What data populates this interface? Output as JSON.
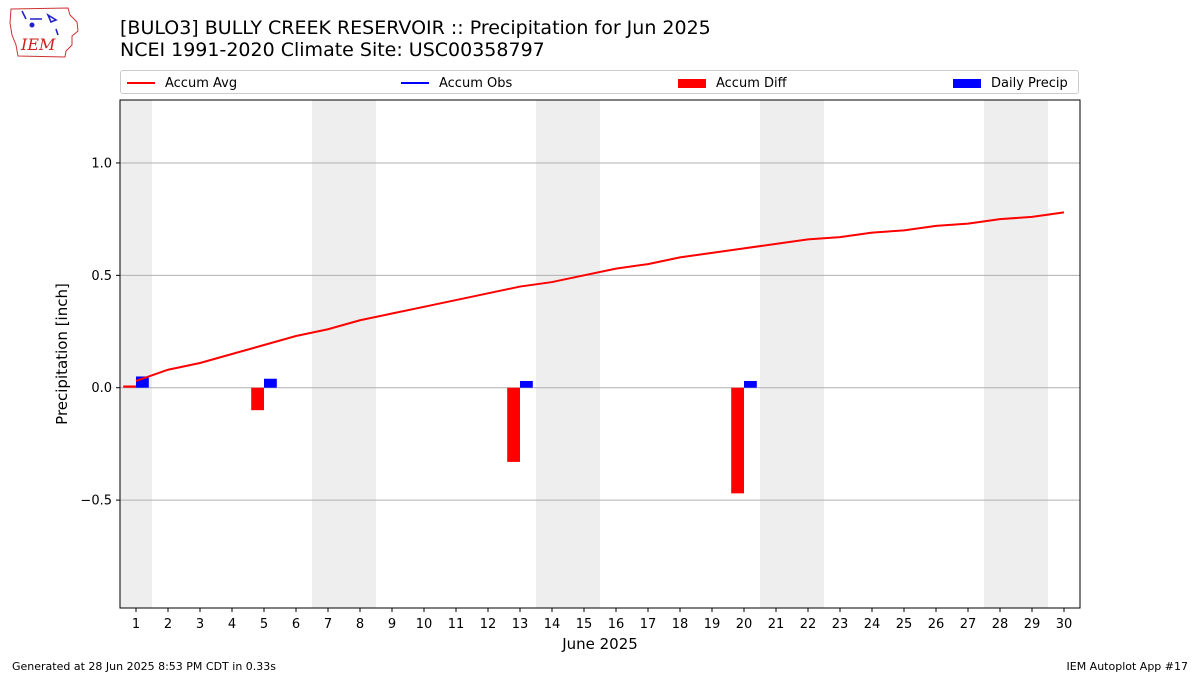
{
  "header": {
    "title_line1": "[BULO3] BULLY CREEK RESERVOIR :: Precipitation for Jun 2025",
    "title_line2": "NCEI 1991-2020 Climate Site: USC00358797",
    "logo_text": "IEM"
  },
  "legend": {
    "items": [
      {
        "label": "Accum Avg",
        "kind": "line",
        "color": "#ff0000"
      },
      {
        "label": "Accum Obs",
        "kind": "line",
        "color": "#0000ff"
      },
      {
        "label": "Accum Diff",
        "kind": "patch",
        "color": "#ff0000"
      },
      {
        "label": "Daily Precip",
        "kind": "patch",
        "color": "#0000ff"
      }
    ],
    "placement": "top, above plot"
  },
  "footer": {
    "left": "Generated at 28 Jun 2025 8:53 PM CDT in 0.33s",
    "right": "IEM Autoplot App #17"
  },
  "chart_data": {
    "type": "bar",
    "xlabel": "June 2025",
    "ylabel": "Precipitation [inch]",
    "x": [
      1,
      2,
      3,
      4,
      5,
      6,
      7,
      8,
      9,
      10,
      11,
      12,
      13,
      14,
      15,
      16,
      17,
      18,
      19,
      20,
      21,
      22,
      23,
      24,
      25,
      26,
      27,
      28,
      29,
      30
    ],
    "xlim": [
      0.5,
      30.5
    ],
    "ylim": [
      -0.98,
      1.28
    ],
    "yticks": [
      -0.5,
      0.0,
      0.5,
      1.0
    ],
    "ytick_labels": [
      "−0.5",
      "0.0",
      "0.5",
      "1.0"
    ],
    "grid": "horizontal",
    "weekend_shading_days": [
      1,
      7,
      8,
      14,
      15,
      21,
      22,
      28,
      29
    ],
    "shading_color": "#eeeeee",
    "series": [
      {
        "name": "Accum Avg",
        "type": "line",
        "color": "#ff0000",
        "values": [
          0.03,
          0.08,
          0.11,
          0.15,
          0.19,
          0.23,
          0.26,
          0.3,
          0.33,
          0.36,
          0.39,
          0.42,
          0.45,
          0.47,
          0.5,
          0.53,
          0.55,
          0.58,
          0.6,
          0.62,
          0.64,
          0.66,
          0.67,
          0.69,
          0.7,
          0.72,
          0.73,
          0.75,
          0.76,
          0.78
        ]
      },
      {
        "name": "Accum Diff",
        "type": "bar",
        "color": "#ff0000",
        "values": [
          0.01,
          null,
          null,
          null,
          -0.1,
          null,
          null,
          null,
          null,
          null,
          null,
          null,
          -0.33,
          null,
          null,
          null,
          null,
          null,
          null,
          -0.47,
          null,
          null,
          null,
          null,
          null,
          null,
          null,
          null,
          null,
          null
        ]
      },
      {
        "name": "Daily Precip",
        "type": "bar",
        "color": "#0000ff",
        "values": [
          0.05,
          null,
          null,
          null,
          0.04,
          null,
          null,
          null,
          null,
          null,
          null,
          null,
          0.03,
          null,
          null,
          null,
          null,
          null,
          null,
          0.03,
          null,
          null,
          null,
          null,
          null,
          null,
          null,
          null,
          null,
          null
        ]
      }
    ]
  }
}
